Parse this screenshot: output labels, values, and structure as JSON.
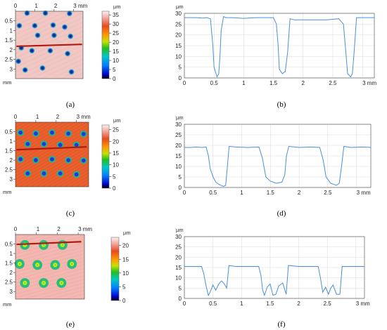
{
  "panels": [
    {
      "id": "a",
      "caption": "(a)",
      "type": "heatmap",
      "x_ticks": [
        "0",
        "1",
        "2",
        "3 mm"
      ],
      "x_tick_values": [
        0,
        1,
        2,
        3
      ],
      "y_ticks": [
        "0.5",
        "1",
        "1.5",
        "2",
        "2.5",
        "3"
      ],
      "y_tick_values": [
        0.5,
        1,
        1.5,
        2,
        2.5,
        3
      ],
      "y_unit": "mm",
      "colorbar": {
        "unit": "µm",
        "ticks": [
          "35",
          "30",
          "25",
          "20",
          "15",
          "10",
          "5",
          "0"
        ],
        "tick_values": [
          35,
          30,
          25,
          20,
          15,
          10,
          5,
          0
        ],
        "max": 37
      },
      "background_color": "#f0c7c3",
      "dots": [
        [
          0.6,
          0.1
        ],
        [
          1.55,
          0.1
        ],
        [
          2.8,
          0.12
        ],
        [
          0.2,
          0.75
        ],
        [
          1.0,
          0.75
        ],
        [
          1.95,
          0.72
        ],
        [
          2.55,
          0.82
        ],
        [
          1.15,
          1.25
        ],
        [
          2.0,
          1.25
        ],
        [
          2.85,
          1.3
        ],
        [
          0.3,
          1.9
        ],
        [
          0.85,
          2.05
        ],
        [
          1.8,
          2.05
        ],
        [
          2.7,
          2.2
        ],
        [
          0.15,
          2.6
        ],
        [
          0.5,
          3.05
        ],
        [
          1.4,
          2.95
        ],
        [
          2.9,
          3.15
        ]
      ],
      "profile_line": [
        [
          0.05,
          1.82
        ],
        [
          3.45,
          1.72
        ]
      ]
    },
    {
      "id": "b",
      "caption": "(b)",
      "type": "line",
      "y_unit": "µm",
      "x_ticks": [
        "0",
        "0.5",
        "1",
        "1.5",
        "2",
        "2.5",
        "3 mm"
      ],
      "x_tick_values": [
        0,
        0.5,
        1,
        1.5,
        2,
        2.5,
        3
      ],
      "y_ticks": [
        "0",
        "5",
        "10",
        "15",
        "20",
        "25",
        "30"
      ],
      "y_tick_values": [
        0,
        5,
        10,
        15,
        20,
        25,
        30
      ],
      "xlim": [
        0,
        3.2
      ],
      "ylim": [
        0,
        30
      ],
      "grid": true,
      "line_color": "#4a8fd8",
      "x": [
        0,
        0.1,
        0.2,
        0.3,
        0.38,
        0.44,
        0.48,
        0.5,
        0.55,
        0.58,
        0.6,
        0.62,
        0.66,
        0.7,
        0.8,
        1.0,
        1.2,
        1.4,
        1.5,
        1.55,
        1.58,
        1.6,
        1.65,
        1.7,
        1.74,
        1.78,
        1.85,
        2.0,
        2.2,
        2.4,
        2.6,
        2.68,
        2.72,
        2.75,
        2.8,
        2.83,
        2.86,
        2.9,
        3.0,
        3.2
      ],
      "y": [
        28,
        28,
        28,
        27.8,
        28,
        27.5,
        15,
        5,
        0.5,
        2,
        10,
        22,
        28.5,
        28,
        28,
        27.7,
        28,
        28,
        28,
        25,
        15,
        4,
        2,
        3,
        12,
        27.5,
        27,
        27,
        27,
        27,
        27.5,
        25,
        12,
        2,
        0.5,
        2,
        12,
        28,
        28,
        28
      ]
    },
    {
      "id": "c",
      "caption": "(c)",
      "type": "heatmap",
      "x_ticks": [
        "0",
        "1",
        "2",
        "3 mm"
      ],
      "x_tick_values": [
        0,
        1,
        2,
        3
      ],
      "y_ticks": [
        "0.5",
        "1",
        "1.5",
        "2",
        "2.5",
        "3"
      ],
      "y_tick_values": [
        0.5,
        1,
        1.5,
        2,
        2.5,
        3
      ],
      "y_unit": "mm",
      "colorbar": {
        "unit": "µm",
        "ticks": [
          "25",
          "20",
          "15",
          "10",
          "5",
          "0"
        ],
        "tick_values": [
          25,
          20,
          15,
          10,
          5,
          0
        ],
        "max": 27
      },
      "background_color": "#e8602e",
      "dots": [
        [
          0.25,
          0.55
        ],
        [
          1.0,
          0.6
        ],
        [
          1.8,
          0.55
        ],
        [
          2.6,
          0.6
        ],
        [
          3.35,
          0.62
        ],
        [
          0.6,
          1.15
        ],
        [
          1.4,
          1.15
        ],
        [
          2.2,
          1.2
        ],
        [
          3.0,
          1.2
        ],
        [
          0.25,
          1.95
        ],
        [
          1.0,
          2.0
        ],
        [
          1.8,
          1.95
        ],
        [
          2.6,
          2.0
        ],
        [
          3.35,
          2.02
        ],
        [
          0.6,
          2.7
        ],
        [
          1.4,
          2.7
        ],
        [
          2.2,
          2.7
        ],
        [
          3.0,
          2.75
        ]
      ],
      "profile_line": [
        [
          0.05,
          1.45
        ],
        [
          3.5,
          1.3
        ]
      ]
    },
    {
      "id": "d",
      "caption": "(d)",
      "type": "line",
      "y_unit": "µm",
      "x_ticks": [
        "0",
        "0.5",
        "1",
        "1.5",
        "2",
        "2.5",
        "3 mm"
      ],
      "x_tick_values": [
        0,
        0.5,
        1,
        1.5,
        2,
        2.5,
        3
      ],
      "y_ticks": [
        "0",
        "5",
        "10",
        "15",
        "20",
        "25",
        "30"
      ],
      "y_tick_values": [
        0,
        5,
        10,
        15,
        20,
        25,
        30
      ],
      "xlim": [
        0,
        3.25
      ],
      "ylim": [
        0,
        30
      ],
      "grid": true,
      "line_color": "#4a8fd8",
      "x": [
        0,
        0.1,
        0.2,
        0.3,
        0.38,
        0.42,
        0.45,
        0.5,
        0.55,
        0.6,
        0.68,
        0.72,
        0.75,
        0.78,
        0.9,
        1.1,
        1.3,
        1.36,
        1.42,
        1.5,
        1.6,
        1.7,
        1.75,
        1.78,
        1.82,
        2.0,
        2.2,
        2.36,
        2.42,
        2.47,
        2.55,
        2.65,
        2.7,
        2.74,
        2.78,
        2.9,
        3.1,
        3.25
      ],
      "y": [
        19,
        19,
        19.2,
        19,
        19.2,
        15,
        9,
        5,
        2.5,
        1.5,
        0.5,
        1,
        10,
        19.5,
        19.2,
        19,
        19.2,
        14,
        5,
        3,
        2,
        2.5,
        6,
        15,
        19.5,
        19,
        19.2,
        19,
        13,
        5,
        2,
        1,
        2,
        10,
        19.5,
        19,
        19.2,
        19
      ]
    },
    {
      "id": "e",
      "caption": "(e)",
      "type": "heatmap",
      "x_ticks": [
        "0",
        "1",
        "2",
        "3 mm"
      ],
      "x_tick_values": [
        0,
        1,
        2,
        3
      ],
      "y_ticks": [
        "0.5",
        "1",
        "1.5",
        "2",
        "2.5",
        "3"
      ],
      "y_tick_values": [
        0.5,
        1,
        1.5,
        2,
        2.5,
        3
      ],
      "y_unit": "mm",
      "colorbar": {
        "unit": "µm",
        "ticks": [
          "20",
          "15",
          "10",
          "5",
          "0"
        ],
        "tick_values": [
          20,
          15,
          10,
          5,
          0
        ],
        "max": 23
      },
      "background_color": "#f3b6b0",
      "dots": [
        [
          0.45,
          0.55
        ],
        [
          1.35,
          0.55
        ],
        [
          2.25,
          0.55
        ],
        [
          0.2,
          1.55
        ],
        [
          1.05,
          1.6
        ],
        [
          1.9,
          1.6
        ],
        [
          2.7,
          1.55
        ],
        [
          0.45,
          2.55
        ],
        [
          1.35,
          2.55
        ],
        [
          2.2,
          2.55
        ]
      ],
      "profile_line": [
        [
          0.05,
          0.52
        ],
        [
          3.15,
          0.38
        ]
      ]
    },
    {
      "id": "f",
      "caption": "(f)",
      "type": "line",
      "y_unit": "µm",
      "x_ticks": [
        "0",
        "0.5",
        "1",
        "1.5",
        "2",
        "2.5",
        "3 mm"
      ],
      "x_tick_values": [
        0,
        0.5,
        1,
        1.5,
        2,
        2.5,
        3
      ],
      "y_ticks": [
        "0",
        "5",
        "10",
        "15",
        "20",
        "25",
        "30"
      ],
      "y_tick_values": [
        0,
        5,
        10,
        15,
        20,
        25,
        30
      ],
      "xlim": [
        0,
        3.15
      ],
      "ylim": [
        0,
        30
      ],
      "grid": true,
      "line_color": "#4a8fd8",
      "x": [
        0,
        0.1,
        0.2,
        0.3,
        0.34,
        0.38,
        0.42,
        0.45,
        0.5,
        0.55,
        0.6,
        0.65,
        0.7,
        0.74,
        0.78,
        0.9,
        1.1,
        1.3,
        1.34,
        1.37,
        1.4,
        1.45,
        1.5,
        1.55,
        1.6,
        1.65,
        1.72,
        1.78,
        1.82,
        2.0,
        2.2,
        2.34,
        2.38,
        2.42,
        2.47,
        2.52,
        2.56,
        2.6,
        2.66,
        2.72,
        2.76,
        2.9,
        3.15
      ],
      "y": [
        15.5,
        15.5,
        15.5,
        15.5,
        12,
        6,
        1.5,
        3,
        6.5,
        4,
        7,
        8.5,
        7,
        5,
        16,
        15.5,
        15.5,
        15.5,
        11,
        4,
        1.5,
        5.5,
        7,
        1.5,
        2,
        6,
        7.5,
        2,
        16,
        15.5,
        15.5,
        15.5,
        10,
        3,
        5.5,
        2,
        5,
        6.5,
        2,
        2,
        15.5,
        15.5,
        15.5
      ]
    }
  ]
}
